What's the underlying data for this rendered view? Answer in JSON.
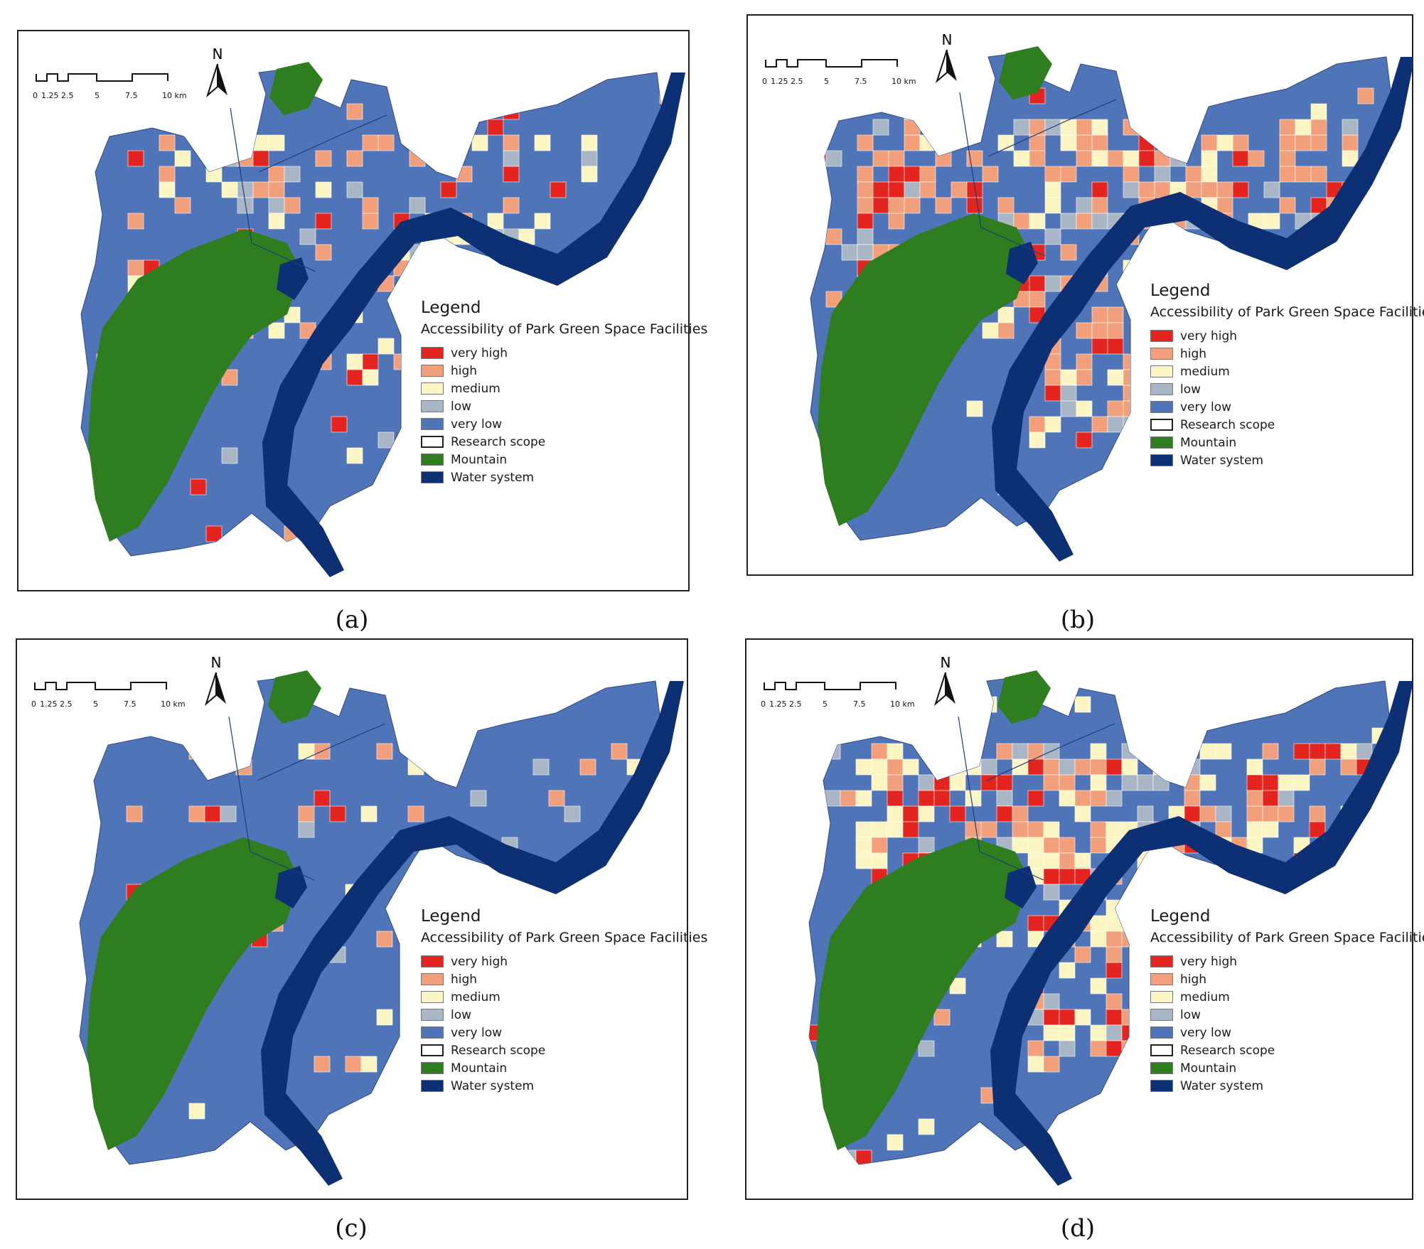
{
  "panels": [
    {
      "id": "a",
      "caption": "(a)",
      "variant": 1
    },
    {
      "id": "b",
      "caption": "(b)",
      "variant": 2
    },
    {
      "id": "c",
      "caption": "(c)",
      "variant": 3
    },
    {
      "id": "d",
      "caption": "(d)",
      "variant": 4
    }
  ],
  "legend": {
    "title": "Legend",
    "subtitle": "Accessibility of Park Green Space Facilities",
    "items": [
      {
        "label": "very high",
        "color": "#e3241f"
      },
      {
        "label": "high",
        "color": "#f2a07c"
      },
      {
        "label": "medium",
        "color": "#fbf5c4"
      },
      {
        "label": "low",
        "color": "#a9b6c6"
      },
      {
        "label": "very low",
        "color": "#4f74b7"
      },
      {
        "label": "Research scope",
        "color": "#ffffff"
      },
      {
        "label": "Mountain",
        "color": "#2e7d1f"
      },
      {
        "label": "Water system",
        "color": "#0d2f73"
      }
    ]
  },
  "scale_bar": {
    "labels": [
      "0",
      "1.25",
      "2.5",
      "5",
      "7.5",
      "10 km"
    ]
  },
  "north_arrow": {
    "letter": "N"
  }
}
